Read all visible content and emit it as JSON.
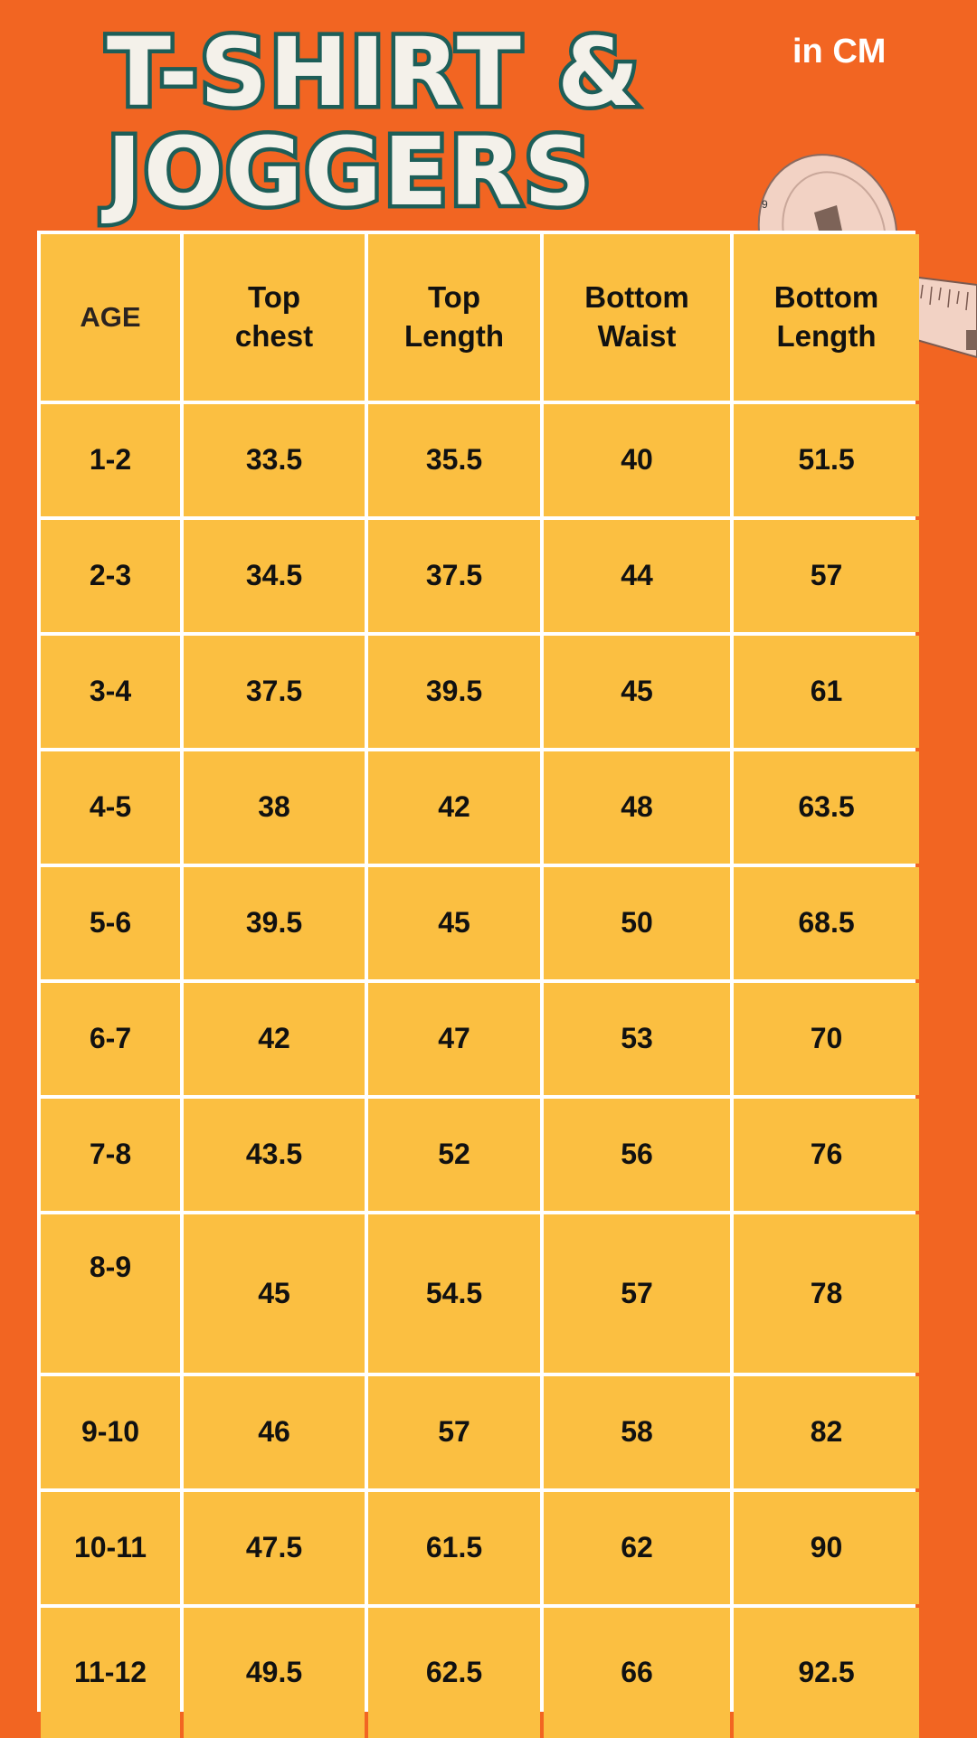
{
  "title": {
    "line1": "T-SHIRT &",
    "line2": "JOGGERS"
  },
  "units": "in CM",
  "colors": {
    "background": "#F26522",
    "cell": "#FBBF41",
    "grid_lines": "#FFFFFF",
    "title_fill": "#F4F1EA",
    "title_outline": "#1D5E58"
  },
  "decoration": "measuring-tape-icon",
  "table": {
    "headers": [
      "AGE",
      "Top\nchest",
      "Top\nLength",
      "Bottom\nWaist",
      "Bottom\nLength"
    ],
    "rows": [
      [
        "1-2",
        "33.5",
        "35.5",
        "40",
        "51.5"
      ],
      [
        "2-3",
        "34.5",
        "37.5",
        "44",
        "57"
      ],
      [
        "3-4",
        "37.5",
        "39.5",
        "45",
        "61"
      ],
      [
        "4-5",
        "38",
        "42",
        "48",
        "63.5"
      ],
      [
        "5-6",
        "39.5",
        "45",
        "50",
        "68.5"
      ],
      [
        "6-7",
        "42",
        "47",
        "53",
        "70"
      ],
      [
        "7-8",
        "43.5",
        "52",
        "56",
        "76"
      ],
      [
        "8-9",
        "45",
        "54.5",
        "57",
        "78"
      ],
      [
        "9-10",
        "46",
        "57",
        "58",
        "82"
      ],
      [
        "10-11",
        "47.5",
        "61.5",
        "62",
        "90"
      ],
      [
        "11-12",
        "49.5",
        "62.5",
        "66",
        "92.5"
      ]
    ]
  }
}
